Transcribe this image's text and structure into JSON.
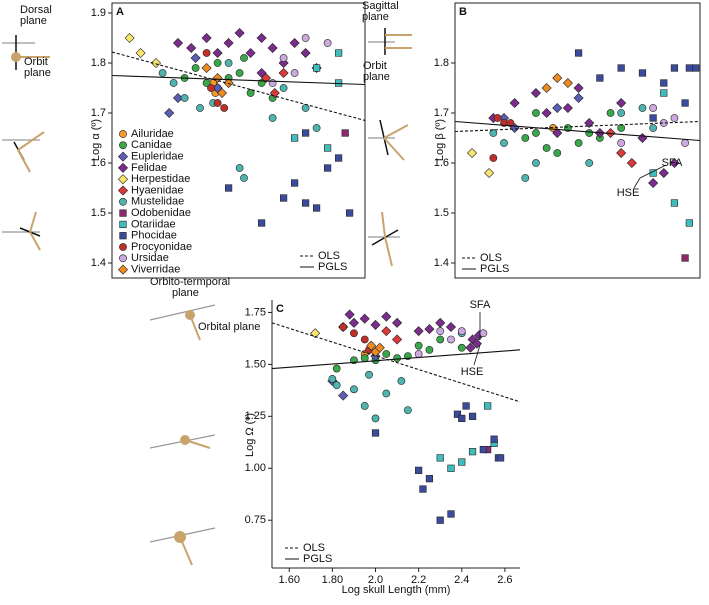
{
  "chart_data": [
    {
      "type": "scatter",
      "title": "A",
      "y_label": "Log α (º)",
      "xlim": [
        1.52,
        2.67
      ],
      "ylim": [
        1.37,
        1.92
      ],
      "yticks": [
        1.4,
        1.5,
        1.6,
        1.7,
        1.8,
        1.9
      ],
      "legend": "lower-left",
      "series": [
        {
          "name": "Ailuridae",
          "color": "#f39a2b",
          "marker": "circle",
          "x": [
            1.98,
            1.99
          ],
          "values": [
            1.76,
            1.74
          ]
        },
        {
          "name": "Canidae",
          "color": "#3aa84a",
          "marker": "circle",
          "x": [
            1.85,
            1.9,
            1.95,
            2.0,
            2.05,
            2.1,
            2.15,
            2.2,
            2.25,
            2.0,
            2.12
          ],
          "values": [
            1.77,
            1.79,
            1.76,
            1.75,
            1.77,
            1.78,
            1.74,
            1.76,
            1.73,
            1.8,
            1.81
          ]
        },
        {
          "name": "Eupleridae",
          "color": "#5a5fb5",
          "marker": "diamond",
          "x": [
            1.78,
            1.82,
            2.0,
            1.9
          ],
          "values": [
            1.7,
            1.73,
            1.75,
            1.81
          ]
        },
        {
          "name": "Felidae",
          "color": "#7a2d8c",
          "marker": "diamond",
          "x": [
            1.82,
            1.88,
            1.95,
            2.0,
            2.05,
            2.1,
            2.15,
            2.2,
            2.25,
            2.3,
            2.35,
            2.4,
            2.45,
            2.2
          ],
          "values": [
            1.84,
            1.83,
            1.85,
            1.82,
            1.84,
            1.86,
            1.82,
            1.85,
            1.83,
            1.8,
            1.84,
            1.82,
            1.79,
            1.78
          ]
        },
        {
          "name": "Herpestidae",
          "color": "#f6e66e",
          "marker": "diamond",
          "x": [
            1.6,
            1.65,
            1.72
          ],
          "values": [
            1.85,
            1.82,
            1.8
          ]
        },
        {
          "name": "Hyaenidae",
          "color": "#d93a3a",
          "marker": "diamond",
          "x": [
            2.22,
            2.26,
            2.3
          ],
          "values": [
            1.77,
            1.74,
            1.78
          ]
        },
        {
          "name": "Mustelidae",
          "color": "#4fb3ae",
          "marker": "circle",
          "x": [
            1.75,
            1.8,
            1.85,
            1.92,
            1.98,
            2.05,
            2.3,
            2.4,
            2.45,
            2.1,
            2.12,
            2.25
          ],
          "values": [
            1.78,
            1.76,
            1.73,
            1.71,
            1.72,
            1.8,
            1.75,
            1.71,
            1.67,
            1.59,
            1.57,
            1.69
          ]
        },
        {
          "name": "Odobenidae",
          "color": "#8c2a6c",
          "marker": "square",
          "x": [
            2.58
          ],
          "values": [
            1.66
          ]
        },
        {
          "name": "Otariidae",
          "color": "#3fbcbc",
          "marker": "square",
          "x": [
            2.35,
            2.45,
            2.55,
            2.5,
            2.55
          ],
          "values": [
            1.65,
            1.79,
            1.82,
            1.63,
            1.76
          ]
        },
        {
          "name": "Phocidae",
          "color": "#3a4b9c",
          "marker": "square",
          "x": [
            2.05,
            2.2,
            2.3,
            2.35,
            2.4,
            2.45,
            2.5,
            2.55,
            2.6,
            2.4
          ],
          "values": [
            1.55,
            1.48,
            1.53,
            1.56,
            1.52,
            1.51,
            1.59,
            1.61,
            1.5,
            1.66
          ]
        },
        {
          "name": "Procyonidae",
          "color": "#c0302b",
          "marker": "circle",
          "x": [
            1.95,
            1.97,
            2.0,
            2.03
          ],
          "values": [
            1.82,
            1.75,
            1.72,
            1.71
          ]
        },
        {
          "name": "Ursidae",
          "color": "#cba8de",
          "marker": "circle",
          "x": [
            2.25,
            2.35,
            2.4,
            2.5,
            2.3
          ],
          "values": [
            1.76,
            1.78,
            1.85,
            1.84,
            1.81
          ]
        },
        {
          "name": "Viverridae",
          "color": "#ee8a22",
          "marker": "diamond",
          "x": [
            1.95,
            2.0,
            2.02,
            2.05
          ],
          "values": [
            1.79,
            1.77,
            1.74,
            1.76
          ]
        }
      ],
      "lines": [
        {
          "name": "OLS",
          "dash": true,
          "x": [
            1.52,
            2.67
          ],
          "values": [
            1.822,
            1.685
          ]
        },
        {
          "name": "PGLS",
          "dash": false,
          "x": [
            1.52,
            2.67
          ],
          "values": [
            1.775,
            1.757
          ]
        }
      ]
    },
    {
      "type": "scatter",
      "title": "B",
      "y_label": "Log β (º)",
      "xlim": [
        1.52,
        2.67
      ],
      "ylim": [
        1.37,
        1.92
      ],
      "yticks": [
        1.4,
        1.5,
        1.6,
        1.7,
        1.8
      ],
      "series": [
        {
          "color": "#f39a2b",
          "marker": "circle",
          "x": [
            1.98
          ],
          "values": [
            1.67
          ]
        },
        {
          "color": "#3aa84a",
          "marker": "circle",
          "x": [
            1.85,
            1.9,
            1.95,
            2.0,
            2.05,
            2.1,
            2.15,
            2.2,
            2.25,
            2.3,
            1.9
          ],
          "values": [
            1.65,
            1.66,
            1.63,
            1.62,
            1.67,
            1.64,
            1.66,
            1.65,
            1.7,
            1.67,
            1.7
          ]
        },
        {
          "color": "#5a5fb5",
          "marker": "diamond",
          "x": [
            1.75,
            1.8,
            2.0,
            2.1
          ],
          "values": [
            1.69,
            1.67,
            1.71,
            1.73
          ]
        },
        {
          "color": "#7a2d8c",
          "marker": "diamond",
          "x": [
            1.7,
            1.8,
            1.9,
            1.95,
            2.0,
            2.05,
            2.1,
            2.15,
            2.2,
            2.3,
            2.45,
            2.5,
            2.55,
            2.4
          ],
          "values": [
            1.69,
            1.72,
            1.74,
            1.7,
            1.66,
            1.71,
            1.75,
            1.68,
            1.66,
            1.72,
            1.56,
            1.58,
            1.6,
            1.65
          ]
        },
        {
          "color": "#f6e66e",
          "marker": "diamond",
          "x": [
            1.6,
            1.68
          ],
          "values": [
            1.62,
            1.58
          ]
        },
        {
          "color": "#d93a3a",
          "marker": "diamond",
          "x": [
            2.25,
            2.3,
            2.35
          ],
          "values": [
            1.66,
            1.62,
            1.6
          ]
        },
        {
          "color": "#4fb3ae",
          "marker": "circle",
          "x": [
            1.7,
            1.75,
            1.85,
            1.9,
            2.15,
            2.3,
            2.4,
            2.45
          ],
          "values": [
            1.66,
            1.64,
            1.57,
            1.6,
            1.6,
            1.7,
            1.71,
            1.67
          ]
        },
        {
          "color": "#8c2a6c",
          "marker": "square",
          "x": [
            2.6
          ],
          "values": [
            1.41
          ]
        },
        {
          "color": "#3fbcbc",
          "marker": "square",
          "x": [
            2.45,
            2.55,
            2.62,
            2.5
          ],
          "values": [
            1.58,
            1.52,
            1.48,
            1.74
          ]
        },
        {
          "color": "#3a4b9c",
          "marker": "square",
          "x": [
            2.1,
            2.2,
            2.3,
            2.4,
            2.5,
            2.55,
            2.62,
            2.65,
            2.6,
            2.45
          ],
          "values": [
            1.82,
            1.77,
            1.79,
            1.78,
            1.76,
            1.79,
            1.79,
            1.79,
            1.72,
            1.69
          ]
        },
        {
          "color": "#c0302b",
          "marker": "circle",
          "x": [
            1.72,
            1.75,
            1.78,
            1.7
          ],
          "values": [
            1.69,
            1.68,
            1.68,
            1.61
          ]
        },
        {
          "color": "#cba8de",
          "marker": "circle",
          "x": [
            2.3,
            2.45,
            2.5,
            2.55,
            2.6
          ],
          "values": [
            1.64,
            1.71,
            1.68,
            1.69,
            1.64
          ]
        },
        {
          "color": "#ee8a22",
          "marker": "diamond",
          "x": [
            1.95,
            2.0,
            2.05
          ],
          "values": [
            1.75,
            1.77,
            1.76
          ]
        }
      ],
      "lines": [
        {
          "name": "OLS",
          "dash": true,
          "x": [
            1.52,
            2.67
          ],
          "values": [
            1.663,
            1.683
          ]
        },
        {
          "name": "PGLS",
          "dash": false,
          "x": [
            1.52,
            2.67
          ],
          "values": [
            1.683,
            1.645
          ]
        }
      ],
      "annotations": [
        "SFA",
        "HSE"
      ]
    },
    {
      "type": "scatter",
      "title": "C",
      "y_label": "Log Ω (º)",
      "x_label": "Log skull Length (mm)",
      "xlim": [
        1.52,
        2.67
      ],
      "ylim": [
        0.52,
        1.81
      ],
      "xticks": [
        {
          "value": 1.6,
          "label": "1.60"
        },
        {
          "value": 1.8,
          "label": "1.80"
        },
        {
          "value": 2.0,
          "label": "2.0"
        },
        2.2,
        2.4,
        2.6
      ],
      "yticks": [
        {
          "value": 0.75,
          "label": "0.75"
        },
        {
          "value": 1.0,
          "label": "1.00"
        },
        1.25,
        {
          "value": 1.5,
          "label": "1.50"
        },
        1.75
      ],
      "series": [
        {
          "color": "#f39a2b",
          "marker": "circle",
          "x": [
            1.95
          ],
          "values": [
            1.55
          ]
        },
        {
          "color": "#3aa84a",
          "marker": "circle",
          "x": [
            1.82,
            1.9,
            1.95,
            2.0,
            2.05,
            2.1,
            2.15,
            2.2,
            2.25,
            2.3,
            2.4
          ],
          "values": [
            1.48,
            1.52,
            1.53,
            1.52,
            1.55,
            1.53,
            1.54,
            1.59,
            1.57,
            1.62,
            1.58
          ]
        },
        {
          "color": "#5a5fb5",
          "marker": "diamond",
          "x": [
            1.85,
            1.8,
            2.0
          ],
          "values": [
            1.35,
            1.42,
            1.54
          ]
        },
        {
          "color": "#7a2d8c",
          "marker": "diamond",
          "x": [
            1.85,
            1.88,
            1.9,
            1.95,
            2.0,
            2.05,
            2.1,
            2.2,
            2.25,
            2.3,
            2.35,
            2.45,
            2.47,
            2.48,
            2.44
          ],
          "values": [
            1.68,
            1.74,
            1.7,
            1.72,
            1.69,
            1.73,
            1.7,
            1.66,
            1.67,
            1.7,
            1.68,
            1.62,
            1.6,
            1.64,
            1.58
          ]
        },
        {
          "color": "#f6e66e",
          "marker": "diamond",
          "x": [
            1.72
          ],
          "values": [
            1.65
          ]
        },
        {
          "color": "#d93a3a",
          "marker": "diamond",
          "x": [
            2.05,
            2.1
          ],
          "values": [
            1.66,
            1.62
          ]
        },
        {
          "color": "#4fb3ae",
          "marker": "circle",
          "x": [
            1.8,
            1.82,
            1.9,
            1.95,
            2.0,
            2.05,
            2.12,
            2.15,
            2.4,
            1.97
          ],
          "values": [
            1.43,
            1.4,
            1.38,
            1.3,
            1.24,
            1.36,
            1.42,
            1.28,
            1.65,
            1.45
          ]
        },
        {
          "color": "#8c2a6c",
          "marker": "square",
          "x": [
            2.52
          ],
          "values": [
            1.09
          ]
        },
        {
          "color": "#3fbcbc",
          "marker": "square",
          "x": [
            2.35,
            2.4,
            2.45,
            2.52,
            2.55,
            2.3
          ],
          "values": [
            1.0,
            1.03,
            1.08,
            1.3,
            1.12,
            1.05
          ]
        },
        {
          "color": "#3a4b9c",
          "marker": "square",
          "x": [
            2.0,
            2.2,
            2.22,
            2.25,
            2.3,
            2.35,
            2.38,
            2.4,
            2.42,
            2.45,
            2.55,
            2.57,
            2.58,
            2.5
          ],
          "values": [
            1.17,
            0.99,
            0.9,
            0.95,
            0.75,
            0.78,
            1.26,
            1.24,
            1.3,
            1.25,
            1.14,
            1.05,
            1.05,
            1.09
          ]
        },
        {
          "color": "#c0302b",
          "marker": "circle",
          "x": [
            1.85,
            1.9,
            1.95,
            1.97
          ],
          "values": [
            1.68,
            1.65,
            1.62,
            1.57
          ]
        },
        {
          "color": "#cba8de",
          "marker": "circle",
          "x": [
            2.3,
            2.35,
            2.4,
            2.5,
            2.2
          ],
          "values": [
            1.66,
            1.62,
            1.66,
            1.65,
            1.55
          ]
        },
        {
          "color": "#ee8a22",
          "marker": "diamond",
          "x": [
            1.98,
            2.0,
            2.02
          ],
          "values": [
            1.59,
            1.56,
            1.58
          ]
        }
      ],
      "lines": [
        {
          "name": "OLS",
          "dash": true,
          "x": [
            1.52,
            2.67
          ],
          "values": [
            1.7,
            1.32
          ]
        },
        {
          "name": "PGLS",
          "dash": false,
          "x": [
            1.52,
            2.67
          ],
          "values": [
            1.48,
            1.57
          ]
        }
      ],
      "annotations": [
        "SFA",
        "HSE"
      ]
    }
  ],
  "diagram_labels": {
    "dorsal_plane": [
      "Dorsal",
      "plane"
    ],
    "orbit_plane_a": [
      "Orbit",
      "plane"
    ],
    "sagittal_plane": [
      "Sagittal",
      "plane"
    ],
    "orbit_plane_b": [
      "Orbit",
      "plane"
    ],
    "orbito_temporal_plane": [
      "Orbito-termporal",
      "plane"
    ],
    "orbital_plane": "Orbital plane"
  }
}
